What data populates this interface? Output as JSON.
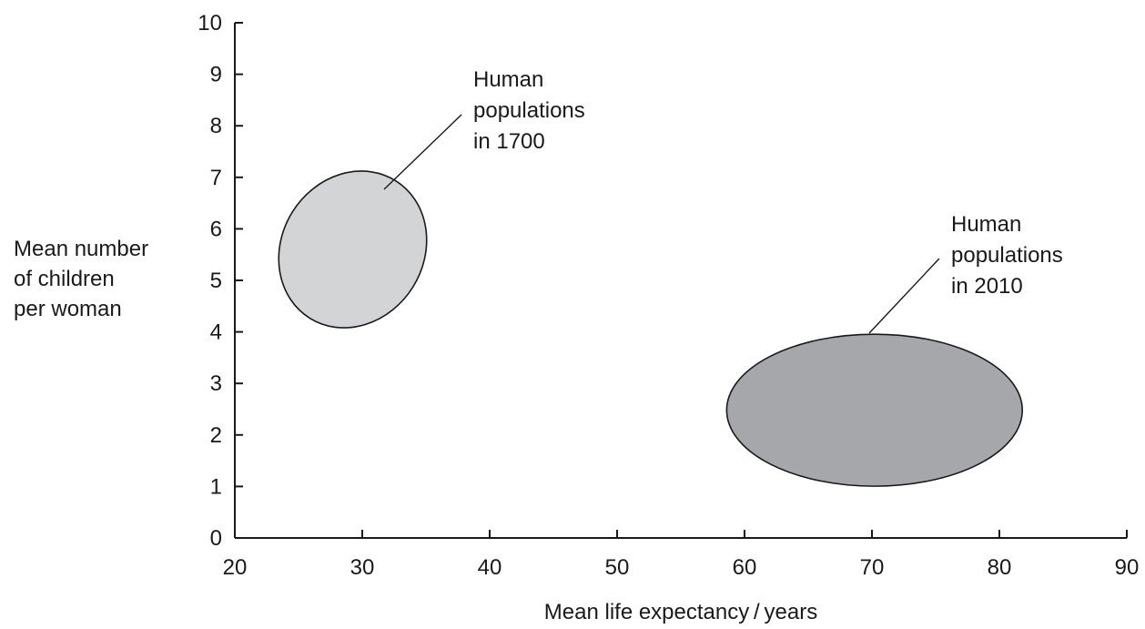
{
  "chart_data": {
    "type": "scatter",
    "title": "",
    "xlabel": "Mean life expectancy / years",
    "ylabel_lines": [
      "Mean number",
      "of children",
      "per woman"
    ],
    "xlim": [
      20,
      90
    ],
    "ylim": [
      0,
      10
    ],
    "xticks": [
      20,
      30,
      40,
      50,
      60,
      70,
      80,
      90
    ],
    "yticks": [
      0,
      1,
      2,
      3,
      4,
      5,
      6,
      7,
      8,
      9,
      10
    ],
    "grid": false,
    "regions": [
      {
        "label_lines": [
          "Human",
          "populations",
          "in 1700"
        ],
        "shape": "ellipse",
        "x_range": [
          22.7,
          35.8
        ],
        "y_range": [
          4.05,
          7.1
        ],
        "center": [
          29.25,
          5.6
        ],
        "fill": "#d3d4d6"
      },
      {
        "label_lines": [
          "Human",
          "populations",
          "in 2010"
        ],
        "shape": "ellipse",
        "x_range": [
          58.6,
          81.8
        ],
        "y_range": [
          1.0,
          3.95
        ],
        "center": [
          70.2,
          2.48
        ],
        "fill": "#a6a7aa"
      }
    ]
  }
}
